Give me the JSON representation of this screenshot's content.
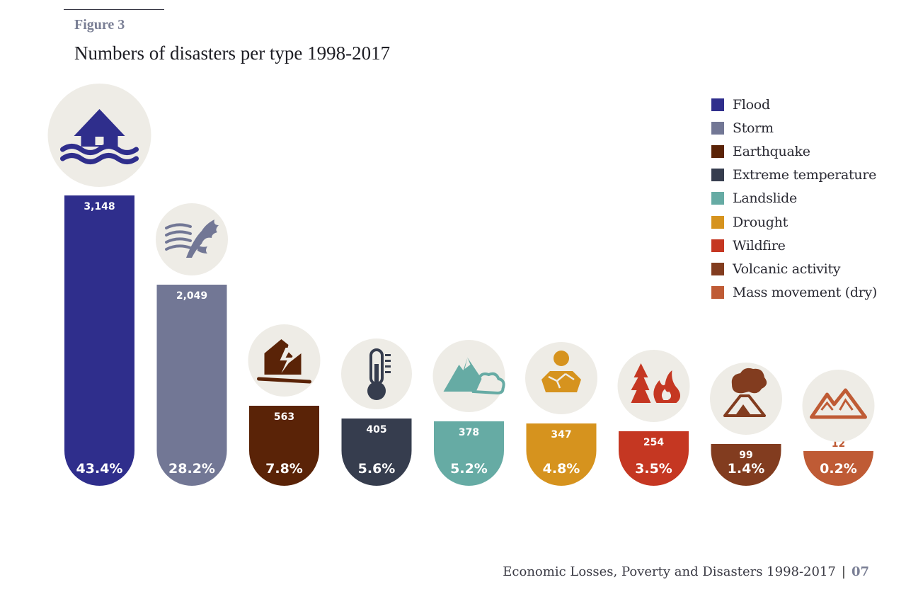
{
  "figure_label": "Figure 3",
  "chart_data": {
    "type": "bar",
    "title": "Numbers of disasters per type 1998-2017",
    "xlabel": "",
    "ylabel": "",
    "ylim": [
      0,
      3148
    ],
    "grid": false,
    "legend_position": "top-right",
    "categories": [
      "Flood",
      "Storm",
      "Earthquake",
      "Extreme temperature",
      "Landslide",
      "Drought",
      "Wildfire",
      "Volcanic activity",
      "Mass movement (dry)"
    ],
    "values": [
      3148,
      2049,
      563,
      405,
      378,
      347,
      254,
      99,
      12
    ],
    "value_labels": [
      "3,148",
      "2,049",
      "563",
      "405",
      "378",
      "347",
      "254",
      "99",
      "12"
    ],
    "percentages": [
      "43.4%",
      "28.2%",
      "7.8%",
      "5.6%",
      "5.2%",
      "4.8%",
      "3.5%",
      "1.4%",
      "0.2%"
    ],
    "colors": [
      "#2f2e8c",
      "#727795",
      "#5a2307",
      "#363d4e",
      "#66aba4",
      "#d6931e",
      "#c53722",
      "#823c1f",
      "#bf5b35"
    ],
    "icons": [
      "flood-icon",
      "storm-icon",
      "earthquake-icon",
      "thermometer-icon",
      "landslide-icon",
      "drought-icon",
      "wildfire-icon",
      "volcano-icon",
      "mountain-icon"
    ]
  },
  "footer": {
    "text": "Economic Losses, Poverty and Disasters 1998-2017",
    "separator": "|",
    "page": "07"
  }
}
